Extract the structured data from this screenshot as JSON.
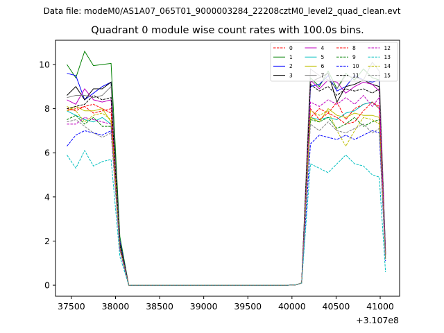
{
  "suptitle": "Data file: modeM0/AS1A07_065T01_9000003284_22208cztM0_level2_quad_clean.evt",
  "title": "Quadrant 0 module wise count rates with 100.0s bins.",
  "chart_data": {
    "type": "line",
    "title": "Quadrant 0 module wise count rates with 100.0s bins.",
    "xlabel": "",
    "ylabel": "",
    "x_offset_label": "+3.107e8",
    "xlim": [
      37320,
      41220
    ],
    "ylim": [
      -0.5,
      11.1
    ],
    "x_ticks": [
      37500,
      38000,
      38500,
      39000,
      39500,
      40000,
      40500,
      41000
    ],
    "y_ticks": [
      0,
      2,
      4,
      6,
      8,
      10
    ],
    "grid": false,
    "legend_placement": "top-right",
    "x": [
      37450,
      37550,
      37650,
      37750,
      37850,
      37950,
      38050,
      38150,
      38250,
      38350,
      38450,
      38550,
      38650,
      38750,
      38850,
      38950,
      39050,
      39150,
      39250,
      39350,
      39450,
      39550,
      39650,
      39750,
      39850,
      39950,
      40050,
      40110,
      40210,
      40310,
      40410,
      40510,
      40610,
      40710,
      40810,
      40910,
      40990,
      41060
    ],
    "series": [
      {
        "name": "0",
        "color": "#ff0000",
        "style": "dashed",
        "values": [
          7.9,
          8.0,
          8.1,
          7.8,
          7.9,
          8.0,
          1.8,
          0,
          0,
          0,
          0,
          0,
          0,
          0,
          0,
          0,
          0,
          0,
          0,
          0,
          0,
          0,
          0,
          0,
          0,
          0,
          0.02,
          0.1,
          7.6,
          8.0,
          7.8,
          8.3,
          7.5,
          8.0,
          8.2,
          8.3,
          8.1,
          1.4
        ]
      },
      {
        "name": "1",
        "color": "#008000",
        "style": "solid",
        "values": [
          10.0,
          9.4,
          10.6,
          9.95,
          10.0,
          10.05,
          2.2,
          0,
          0,
          0,
          0,
          0,
          0,
          0,
          0,
          0,
          0,
          0,
          0,
          0,
          0,
          0,
          0,
          0,
          0,
          0,
          0.02,
          0.1,
          9.4,
          9.0,
          9.7,
          8.9,
          9.6,
          9.3,
          9.8,
          9.4,
          9.3,
          1.6
        ]
      },
      {
        "name": "2",
        "color": "#0000ff",
        "style": "solid",
        "values": [
          9.6,
          9.5,
          8.4,
          8.7,
          9.0,
          9.2,
          2.0,
          0,
          0,
          0,
          0,
          0,
          0,
          0,
          0,
          0,
          0,
          0,
          0,
          0,
          0,
          0,
          0,
          0,
          0,
          0,
          0.02,
          0.1,
          9.0,
          9.1,
          9.5,
          8.8,
          9.0,
          9.5,
          9.3,
          9.2,
          9.3,
          1.5
        ]
      },
      {
        "name": "3",
        "color": "#000000",
        "style": "solid",
        "values": [
          8.6,
          9.0,
          8.4,
          8.9,
          8.9,
          9.2,
          1.9,
          0,
          0,
          0,
          0,
          0,
          0,
          0,
          0,
          0,
          0,
          0,
          0,
          0,
          0,
          0,
          0,
          0,
          0,
          0,
          0.02,
          0.1,
          9.2,
          9.4,
          9.6,
          8.3,
          9.0,
          9.1,
          9.3,
          9.1,
          9.0,
          1.4
        ]
      },
      {
        "name": "4",
        "color": "#bf00bf",
        "style": "solid",
        "values": [
          8.4,
          8.2,
          8.9,
          8.4,
          8.3,
          8.4,
          1.8,
          0,
          0,
          0,
          0,
          0,
          0,
          0,
          0,
          0,
          0,
          0,
          0,
          0,
          0,
          0,
          0,
          0,
          0,
          0,
          0.02,
          0.1,
          9.3,
          8.9,
          9.3,
          9.2,
          8.7,
          9.0,
          9.2,
          9.1,
          8.8,
          1.4
        ]
      },
      {
        "name": "5",
        "color": "#00bfbf",
        "style": "solid",
        "values": [
          7.9,
          7.7,
          7.5,
          7.4,
          7.6,
          7.3,
          1.7,
          0,
          0,
          0,
          0,
          0,
          0,
          0,
          0,
          0,
          0,
          0,
          0,
          0,
          0,
          0,
          0,
          0,
          0,
          0,
          0.02,
          0.1,
          7.6,
          7.5,
          7.6,
          7.5,
          7.8,
          7.9,
          8.2,
          8.3,
          8.0,
          1.3
        ]
      },
      {
        "name": "6",
        "color": "#bfbf00",
        "style": "solid",
        "values": [
          7.9,
          8.1,
          7.9,
          7.9,
          8.0,
          7.4,
          1.7,
          0,
          0,
          0,
          0,
          0,
          0,
          0,
          0,
          0,
          0,
          0,
          0,
          0,
          0,
          0,
          0,
          0,
          0,
          0,
          0.02,
          0.1,
          7.6,
          7.4,
          8.0,
          7.7,
          7.6,
          7.8,
          7.7,
          7.7,
          7.6,
          1.3
        ]
      },
      {
        "name": "7",
        "color": "#808080",
        "style": "solid",
        "values": [
          8.5,
          8.6,
          8.6,
          8.5,
          8.6,
          9.0,
          1.8,
          0,
          0,
          0,
          0,
          0,
          0,
          0,
          0,
          0,
          0,
          0,
          0,
          0,
          0,
          0,
          0,
          0,
          0,
          0,
          0.02,
          0.1,
          9.8,
          9.5,
          9.3,
          8.9,
          9.5,
          9.4,
          9.3,
          10.1,
          9.7,
          1.5
        ]
      },
      {
        "name": "8",
        "color": "#ff0000",
        "style": "dashed",
        "values": [
          8.0,
          7.9,
          8.1,
          8.2,
          8.0,
          7.8,
          1.8,
          0,
          0,
          0,
          0,
          0,
          0,
          0,
          0,
          0,
          0,
          0,
          0,
          0,
          0,
          0,
          0,
          0,
          0,
          0,
          0.02,
          0.1,
          8.0,
          7.5,
          7.8,
          7.6,
          7.3,
          7.4,
          7.9,
          8.3,
          8.0,
          1.3
        ]
      },
      {
        "name": "9",
        "color": "#008000",
        "style": "dashed",
        "values": [
          7.5,
          7.7,
          7.3,
          7.6,
          7.2,
          7.2,
          1.7,
          0,
          0,
          0,
          0,
          0,
          0,
          0,
          0,
          0,
          0,
          0,
          0,
          0,
          0,
          0,
          0,
          0,
          0,
          0,
          0.02,
          0.1,
          7.5,
          7.4,
          7.6,
          7.1,
          7.3,
          7.6,
          7.2,
          7.4,
          7.5,
          1.2
        ]
      },
      {
        "name": "10",
        "color": "#0000ff",
        "style": "dashed",
        "values": [
          6.3,
          6.8,
          7.0,
          6.9,
          6.8,
          7.0,
          1.6,
          0,
          0,
          0,
          0,
          0,
          0,
          0,
          0,
          0,
          0,
          0,
          0,
          0,
          0,
          0,
          0,
          0,
          0,
          0,
          0.02,
          0.1,
          6.4,
          6.8,
          6.7,
          6.6,
          6.8,
          6.6,
          6.8,
          7.0,
          6.9,
          1.1
        ]
      },
      {
        "name": "11",
        "color": "#000000",
        "style": "dashed",
        "values": [
          8.0,
          8.1,
          8.2,
          8.6,
          8.4,
          8.5,
          1.8,
          0,
          0,
          0,
          0,
          0,
          0,
          0,
          0,
          0,
          0,
          0,
          0,
          0,
          0,
          0,
          0,
          0,
          0,
          0,
          0.02,
          0.1,
          9.1,
          8.8,
          9.0,
          8.6,
          8.9,
          8.8,
          8.9,
          8.7,
          8.9,
          1.4
        ]
      },
      {
        "name": "12",
        "color": "#bf00bf",
        "style": "dashed",
        "values": [
          7.3,
          7.3,
          7.6,
          7.5,
          7.4,
          7.3,
          1.6,
          0,
          0,
          0,
          0,
          0,
          0,
          0,
          0,
          0,
          0,
          0,
          0,
          0,
          0,
          0,
          0,
          0,
          0,
          0,
          0.02,
          0.1,
          8.3,
          8.1,
          8.4,
          8.2,
          8.5,
          8.2,
          8.6,
          8.1,
          8.5,
          1.4
        ]
      },
      {
        "name": "13",
        "color": "#00bfbf",
        "style": "dashed",
        "values": [
          5.9,
          5.3,
          6.1,
          5.4,
          5.6,
          5.7,
          1.3,
          0,
          0,
          0,
          0,
          0,
          0,
          0,
          0,
          0,
          0,
          0,
          0,
          0,
          0,
          0,
          0,
          0,
          0,
          0,
          0.02,
          0.1,
          5.5,
          5.3,
          5.1,
          5.5,
          5.9,
          5.5,
          5.4,
          5.0,
          4.9,
          0.6
        ]
      },
      {
        "name": "14",
        "color": "#bfbf00",
        "style": "dashed",
        "values": [
          8.1,
          7.9,
          7.4,
          7.7,
          7.8,
          7.5,
          1.7,
          0,
          0,
          0,
          0,
          0,
          0,
          0,
          0,
          0,
          0,
          0,
          0,
          0,
          0,
          0,
          0,
          0,
          0,
          0,
          0.02,
          0.1,
          7.9,
          7.7,
          7.9,
          7.0,
          6.3,
          7.0,
          7.6,
          7.5,
          7.3,
          1.2
        ]
      },
      {
        "name": "15",
        "color": "#808080",
        "style": "dashed",
        "values": [
          7.4,
          7.5,
          7.2,
          6.9,
          6.7,
          6.9,
          1.6,
          0,
          0,
          0,
          0,
          0,
          0,
          0,
          0,
          0,
          0,
          0,
          0,
          0,
          0,
          0,
          0,
          0,
          0,
          0,
          0.02,
          0.1,
          7.3,
          7.0,
          7.4,
          7.0,
          6.9,
          7.1,
          7.3,
          6.9,
          7.1,
          1.2
        ]
      }
    ]
  }
}
